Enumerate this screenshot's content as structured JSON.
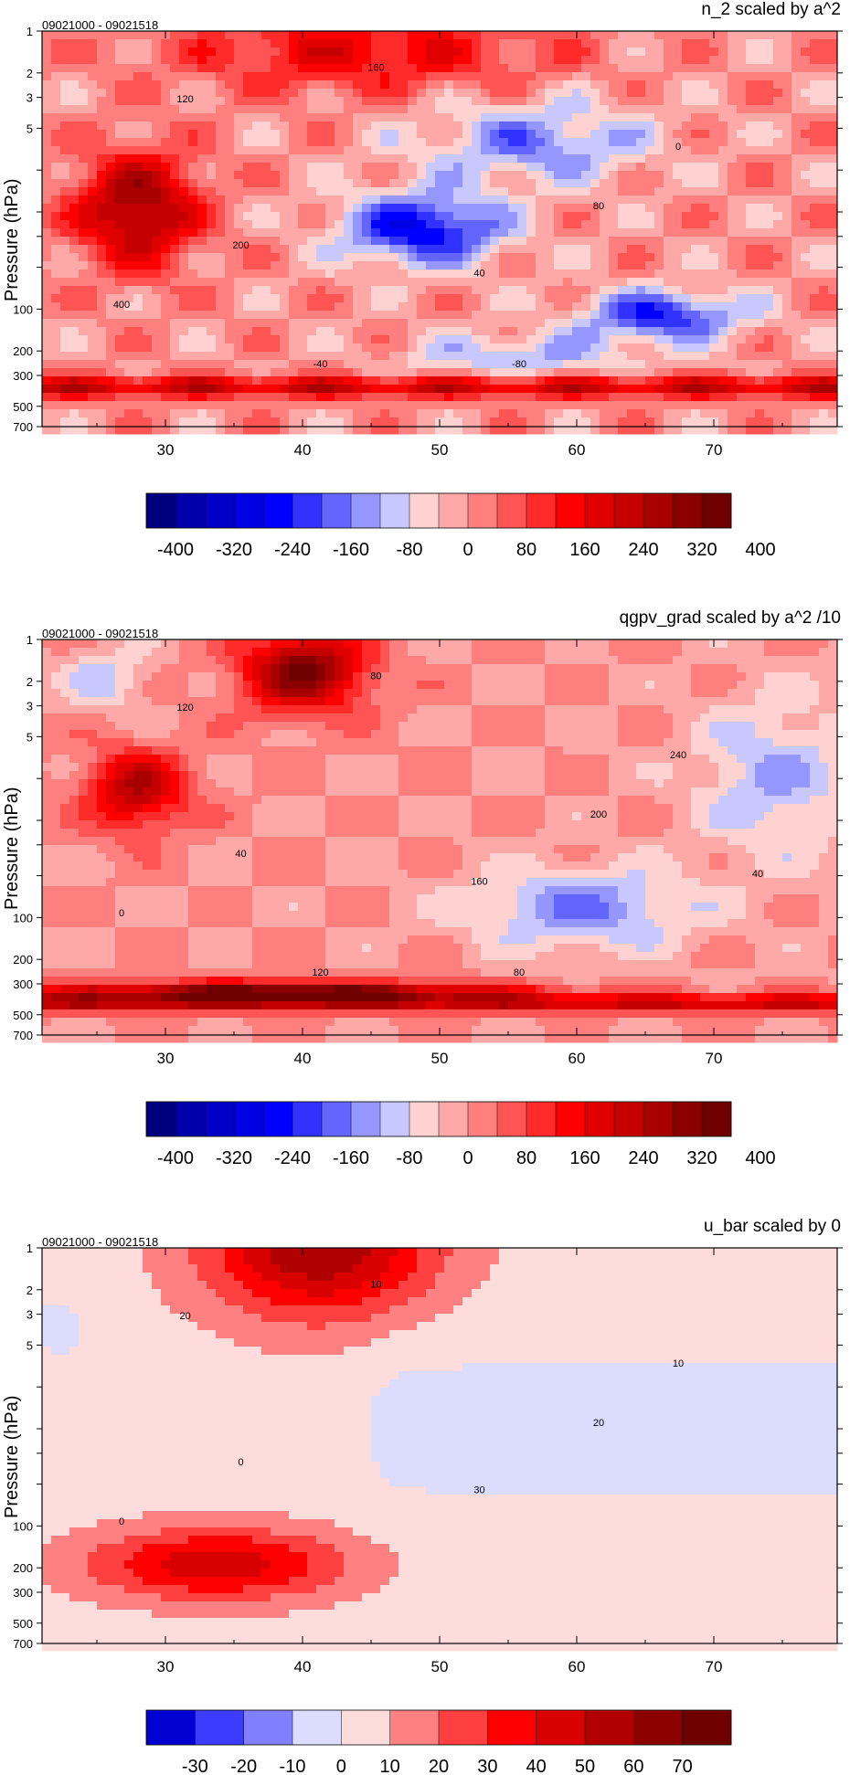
{
  "chart_data": [
    {
      "type": "heatmap",
      "title": "n_2 scaled by a^2",
      "subtitle": "09021000 - 09021518",
      "ylabel": "Pressure (hPa)",
      "xlabel": "",
      "x_ticks": [
        30,
        40,
        50,
        60,
        70
      ],
      "xlim": [
        21,
        79
      ],
      "y_ticks": [
        1,
        2,
        3,
        5,
        10,
        20,
        30,
        50,
        100,
        200,
        300,
        500,
        700
      ],
      "y_tick_labels": [
        "1",
        "2",
        "3",
        "5",
        "",
        "",
        "",
        "",
        "100",
        "200",
        "300",
        "500",
        "700"
      ],
      "y_scale": "log-pressure",
      "ylim": [
        1,
        700
      ],
      "colorbar": {
        "tick_labels": [
          "-400",
          "-320",
          "-240",
          "-160",
          "-80",
          "0",
          "80",
          "160",
          "240",
          "320",
          "400"
        ],
        "colors": [
          "#00007f",
          "#0000a8",
          "#0000c6",
          "#0000e2",
          "#0000ff",
          "#3232ff",
          "#6464ff",
          "#9696ff",
          "#c8c8ff",
          "#ffd2d2",
          "#ffa8a8",
          "#ff7e7e",
          "#ff5454",
          "#ff2a2a",
          "#ff0000",
          "#e00000",
          "#c40000",
          "#a80000",
          "#8a0000",
          "#6e0000"
        ]
      },
      "contour_labels": [
        "120",
        "160",
        "200",
        "400",
        "40",
        "80",
        "0",
        "-80",
        "-40"
      ]
    },
    {
      "type": "heatmap",
      "title": "qgpv_grad scaled by a^2 /10",
      "subtitle": "09021000 - 09021518",
      "ylabel": "Pressure (hPa)",
      "xlabel": "",
      "x_ticks": [
        30,
        40,
        50,
        60,
        70
      ],
      "xlim": [
        21,
        79
      ],
      "y_ticks": [
        1,
        2,
        3,
        5,
        10,
        20,
        30,
        50,
        100,
        200,
        300,
        500,
        700
      ],
      "y_tick_labels": [
        "1",
        "2",
        "3",
        "5",
        "",
        "",
        "",
        "",
        "100",
        "200",
        "300",
        "500",
        "700"
      ],
      "y_scale": "log-pressure",
      "ylim": [
        1,
        700
      ],
      "colorbar": {
        "tick_labels": [
          "-400",
          "-320",
          "-240",
          "-160",
          "-80",
          "0",
          "80",
          "160",
          "240",
          "320",
          "400"
        ],
        "colors": [
          "#00007f",
          "#0000a8",
          "#0000c6",
          "#0000e2",
          "#0000ff",
          "#3232ff",
          "#6464ff",
          "#9696ff",
          "#c8c8ff",
          "#ffd2d2",
          "#ffa8a8",
          "#ff7e7e",
          "#ff5454",
          "#ff2a2a",
          "#ff0000",
          "#e00000",
          "#c40000",
          "#a80000",
          "#8a0000",
          "#6e0000"
        ]
      },
      "contour_labels": [
        "120",
        "80",
        "40",
        "0",
        "160",
        "200",
        "240",
        "80",
        "120",
        "40"
      ]
    },
    {
      "type": "heatmap",
      "title": "u_bar scaled by 0",
      "subtitle": "09021000 - 09021518",
      "ylabel": "Pressure (hPa)",
      "xlabel": "",
      "x_ticks": [
        30,
        40,
        50,
        60,
        70
      ],
      "xlim": [
        21,
        79
      ],
      "y_ticks": [
        1,
        2,
        3,
        5,
        10,
        20,
        30,
        50,
        100,
        200,
        300,
        500,
        700
      ],
      "y_tick_labels": [
        "1",
        "2",
        "3",
        "5",
        "",
        "",
        "",
        "",
        "100",
        "200",
        "300",
        "500",
        "700"
      ],
      "y_scale": "log-pressure",
      "ylim": [
        1,
        700
      ],
      "colorbar": {
        "tick_labels": [
          "-30",
          "-20",
          "-10",
          "0",
          "10",
          "20",
          "30",
          "40",
          "50",
          "60",
          "70"
        ],
        "colors": [
          "#0000d0",
          "#3c3cff",
          "#8080ff",
          "#dcdcff",
          "#ffdcdc",
          "#ff8080",
          "#ff4040",
          "#ff0000",
          "#d80000",
          "#b00000",
          "#8c0000",
          "#6e0000"
        ]
      },
      "contour_labels": [
        "20",
        "10",
        "0",
        "0",
        "30",
        "20",
        "10"
      ]
    }
  ]
}
